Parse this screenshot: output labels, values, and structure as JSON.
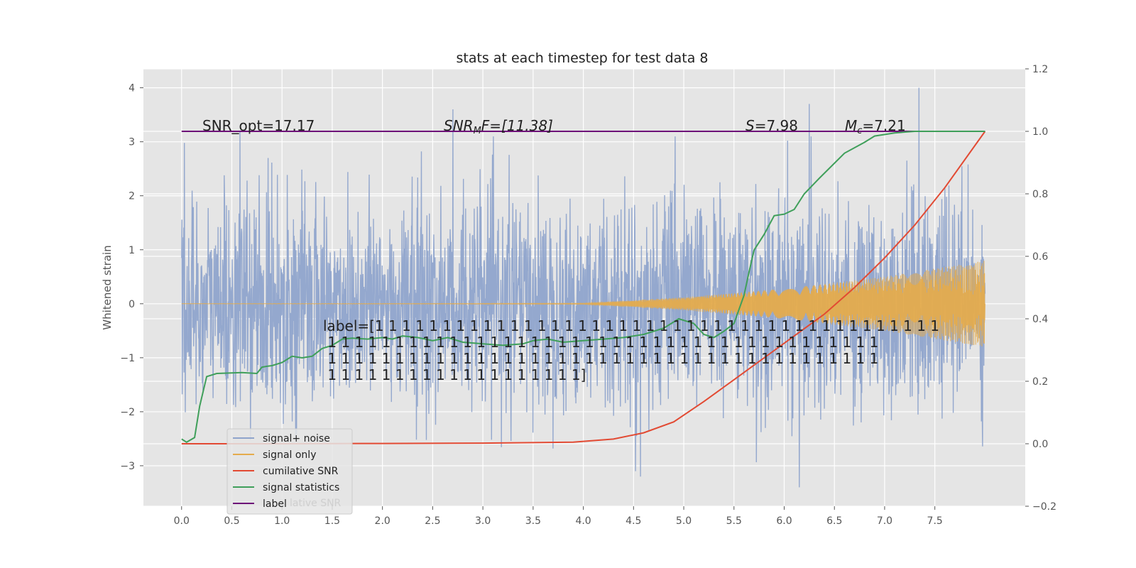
{
  "chart_data": {
    "type": "line",
    "title": "stats at each timestep for test data 8",
    "ylabel": "Whitened strain",
    "xlabel": "",
    "xlim": [
      -0.38,
      8.4
    ],
    "ylim": [
      -3.75,
      4.35
    ],
    "y2lim": [
      -0.2,
      1.2
    ],
    "grid": true,
    "legend_position": "lower-left",
    "x_ticks": [
      "0.0",
      "0.5",
      "1.0",
      "1.5",
      "2.0",
      "2.5",
      "3.0",
      "3.5",
      "4.0",
      "4.5",
      "5.0",
      "5.5",
      "6.0",
      "6.5",
      "7.0",
      "7.5"
    ],
    "y_ticks": [
      "−3",
      "−2",
      "−1",
      "0",
      "1",
      "2",
      "3",
      "4"
    ],
    "y2_ticks": [
      "−0.2",
      "0.0",
      "0.2",
      "0.4",
      "0.6",
      "0.8",
      "1.0",
      "1.2"
    ],
    "colors": {
      "signal_noise": "#8fa4cc",
      "signal_only": "#e4ab4c",
      "cumulative_snr": "#e24a33",
      "signal_statistics": "#3f9f5a",
      "label": "#6d0f78"
    },
    "legend": [
      {
        "name": "signal+ noise",
        "color": "#8fa4cc"
      },
      {
        "name": "signal only",
        "color": "#e4ab4c"
      },
      {
        "name": "cumilative SNR",
        "color": "#e24a33"
      },
      {
        "name": "signal statistics",
        "color": "#3f9f5a"
      },
      {
        "name": "label",
        "color": "#6d0f78"
      }
    ],
    "annotations": {
      "snr_opt": "SNR_opt=17.17",
      "snr_mf": "SNR",
      "snr_mf_sub": "M",
      "snr_mf_rest": "F=[11.38]",
      "s_stat": "S",
      "s_val": "=7.98",
      "mc": "M",
      "mc_sub": "c",
      "mc_val": "=7.21",
      "label_lines": [
        "label=[1 1 1 1 1 1 1 1 1 1 1 1 1 1 1 1 1 1 1 1 1 1 1 1 1 1 1 1 1 1 1 1 1 1 1 1 1 1 1 1 1 1",
        " 1 1 1 1 1 1 1 1 1 1 1 1 1 1 1 1 1 1 1 1 1 1 1 1 1 1 1 1 1 1 1 1 1 1 1 1 1 1 1 1 1",
        " 1 1 1 1 1 1 1 1 1 1 1 1 1 1 1 1 1 1 1 1 1 1 1 1 1 1 1 1 1 1 1 1 1 1 1 1 1 1 1 1 1",
        " 1 1 1 1 1 1 1 1 1 1 1 1 1 1 1 1 1 1 1]"
      ],
      "ghost_legend_text": "lative SNR"
    },
    "series": [
      {
        "name": "signal+ noise",
        "axis": "left",
        "x_range": [
          0.0,
          8.0
        ],
        "amplitude": 1.0,
        "peaks": [
          [
            0.58,
            3.2
          ],
          [
            2.7,
            3.6
          ],
          [
            6.25,
            3.7
          ],
          [
            7.34,
            4.0
          ],
          [
            6.15,
            -3.4
          ],
          [
            4.57,
            -3.2
          ]
        ]
      },
      {
        "name": "signal only",
        "axis": "left",
        "x_range": [
          0.0,
          8.0
        ],
        "envelope": [
          [
            0.0,
            0.0
          ],
          [
            4.0,
            0.01
          ],
          [
            5.0,
            0.12
          ],
          [
            6.0,
            0.28
          ],
          [
            7.0,
            0.5
          ],
          [
            8.0,
            0.8
          ]
        ]
      },
      {
        "name": "cumilative SNR",
        "axis": "right",
        "x": [
          0.0,
          1.0,
          2.0,
          3.0,
          3.9,
          4.3,
          4.6,
          4.9,
          5.2,
          5.5,
          5.8,
          6.1,
          6.4,
          6.7,
          7.0,
          7.3,
          7.6,
          8.0
        ],
        "y": [
          0.0,
          0.0,
          0.001,
          0.002,
          0.005,
          0.015,
          0.035,
          0.07,
          0.135,
          0.205,
          0.275,
          0.345,
          0.415,
          0.5,
          0.595,
          0.7,
          0.82,
          1.0
        ]
      },
      {
        "name": "signal statistics",
        "axis": "right",
        "x": [
          0.0,
          0.05,
          0.13,
          0.18,
          0.25,
          0.35,
          0.6,
          0.75,
          0.8,
          0.85,
          0.9,
          1.0,
          1.1,
          1.2,
          1.3,
          1.4,
          1.5,
          1.6,
          1.7,
          1.85,
          2.0,
          2.1,
          2.2,
          2.35,
          2.5,
          2.65,
          2.8,
          3.0,
          3.2,
          3.4,
          3.5,
          3.65,
          3.8,
          4.0,
          4.2,
          4.4,
          4.6,
          4.8,
          4.95,
          5.1,
          5.2,
          5.3,
          5.4,
          5.5,
          5.6,
          5.65,
          5.7,
          5.8,
          5.9,
          6.0,
          6.1,
          6.2,
          6.35,
          6.6,
          6.8,
          6.9,
          7.1,
          7.3,
          7.5,
          7.8,
          8.0
        ],
        "y": [
          0.015,
          0.005,
          0.02,
          0.12,
          0.215,
          0.225,
          0.228,
          0.225,
          0.245,
          0.248,
          0.25,
          0.26,
          0.28,
          0.275,
          0.28,
          0.305,
          0.315,
          0.335,
          0.338,
          0.335,
          0.34,
          0.335,
          0.345,
          0.34,
          0.33,
          0.34,
          0.325,
          0.32,
          0.315,
          0.32,
          0.33,
          0.335,
          0.325,
          0.33,
          0.335,
          0.34,
          0.35,
          0.37,
          0.4,
          0.385,
          0.35,
          0.34,
          0.36,
          0.385,
          0.475,
          0.55,
          0.62,
          0.67,
          0.73,
          0.735,
          0.75,
          0.8,
          0.85,
          0.93,
          0.965,
          0.985,
          0.995,
          1.0,
          1.0,
          1.0,
          1.0
        ]
      },
      {
        "name": "label",
        "axis": "right",
        "x": [
          0.0,
          8.0
        ],
        "y": [
          1.0,
          1.0
        ]
      }
    ]
  }
}
